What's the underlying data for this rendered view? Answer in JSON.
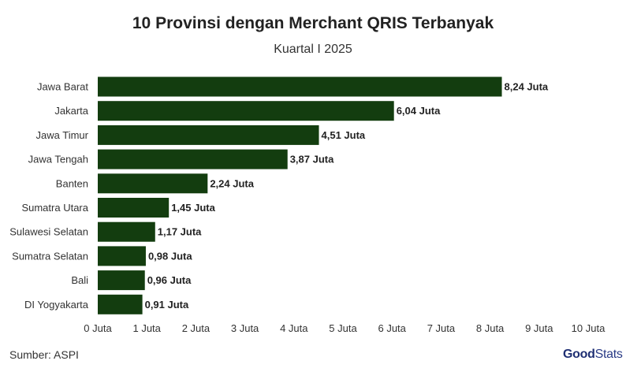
{
  "title": "10 Provinsi dengan Merchant QRIS Terbanyak",
  "subtitle": "Kuartal I 2025",
  "source": "Sumber: ASPI",
  "logo": {
    "good": "Good",
    "stats": "Stats"
  },
  "colors": {
    "bar": "#133d0f"
  },
  "chart_data": {
    "type": "bar",
    "orientation": "horizontal",
    "title": "10 Provinsi dengan Merchant QRIS Terbanyak",
    "subtitle": "Kuartal I 2025",
    "categories": [
      "Jawa Barat",
      "Jakarta",
      "Jawa Timur",
      "Jawa Tengah",
      "Banten",
      "Sumatra Utara",
      "Sulawesi Selatan",
      "Sumatra Selatan",
      "Bali",
      "DI Yogyakarta"
    ],
    "values": [
      8.24,
      6.04,
      4.51,
      3.87,
      2.24,
      1.45,
      1.17,
      0.98,
      0.96,
      0.91
    ],
    "value_labels": [
      "8,24 Juta",
      "6,04 Juta",
      "4,51 Juta",
      "3,87 Juta",
      "2,24 Juta",
      "1,45 Juta",
      "1,17 Juta",
      "0,98 Juta",
      "0,96 Juta",
      "0,91 Juta"
    ],
    "xlim": [
      0,
      10
    ],
    "x_ticks": [
      0,
      1,
      2,
      3,
      4,
      5,
      6,
      7,
      8,
      9,
      10
    ],
    "x_tick_labels": [
      "0 Juta",
      "1 Juta",
      "2 Juta",
      "3 Juta",
      "4 Juta",
      "5 Juta",
      "6 Juta",
      "7 Juta",
      "8 Juta",
      "9 Juta",
      "10 Juta"
    ],
    "grid": false,
    "legend": "none"
  }
}
